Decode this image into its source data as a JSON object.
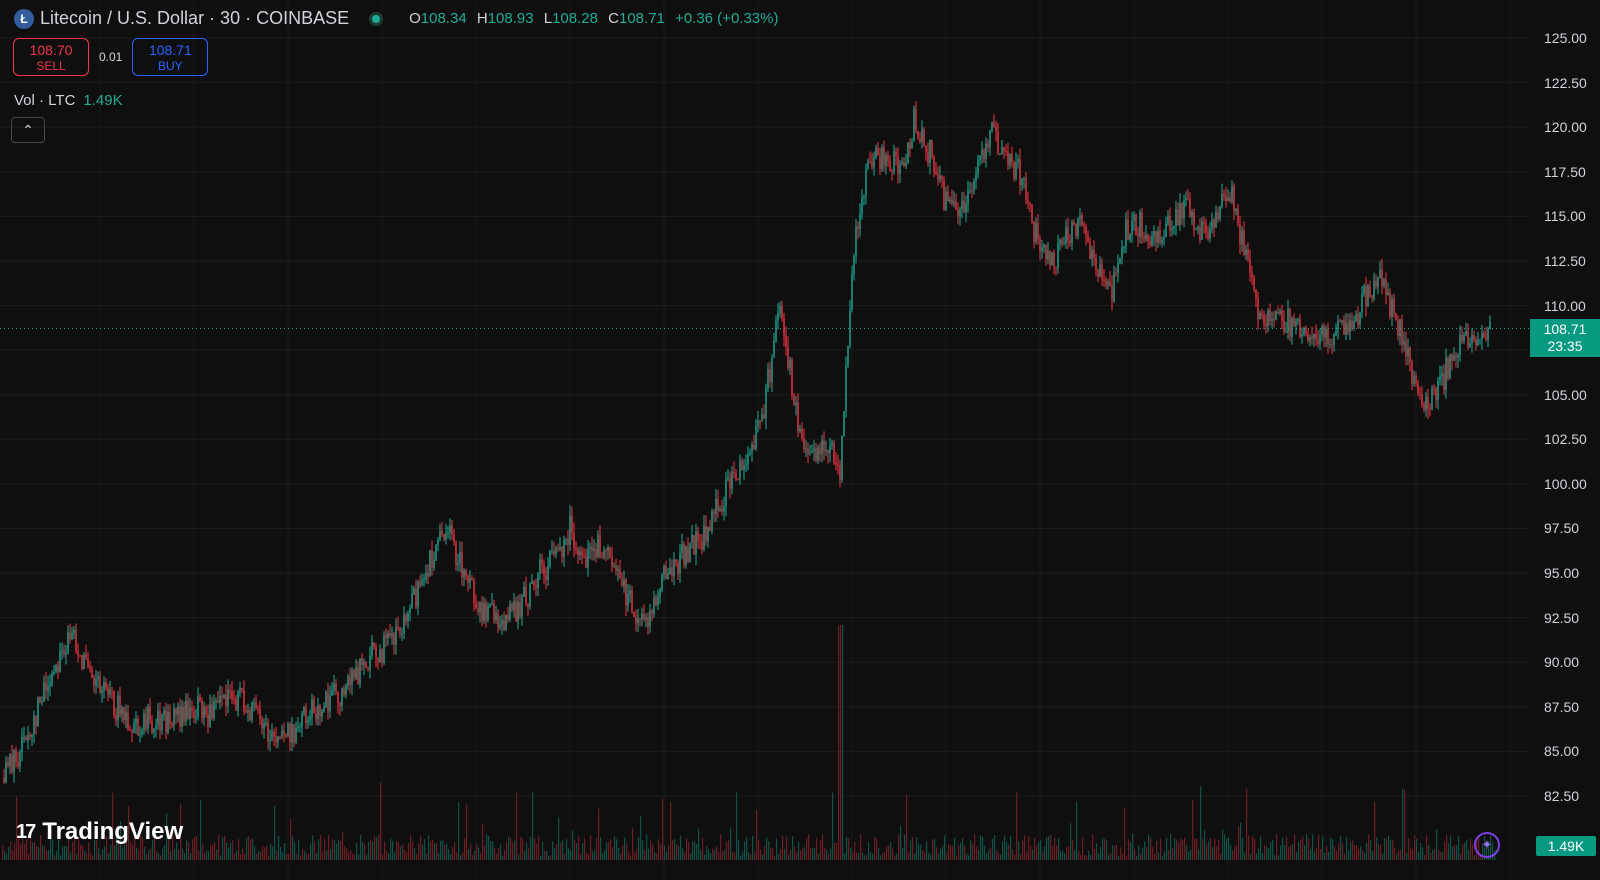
{
  "header": {
    "symbol_icon": "litecoin-icon",
    "title": "Litecoin / U.S. Dollar · 30 · COINBASE",
    "ohlc": {
      "o_label": "O",
      "o": "108.34",
      "h_label": "H",
      "h": "108.93",
      "l_label": "L",
      "l": "108.28",
      "c_label": "C",
      "c": "108.71",
      "change": "+0.36 (+0.33%)"
    }
  },
  "trade": {
    "sell_price": "108.70",
    "sell_label": "SELL",
    "spread": "0.01",
    "buy_price": "108.71",
    "buy_label": "BUY"
  },
  "volume": {
    "label": "Vol · LTC",
    "value": "1.49K"
  },
  "last_price": {
    "price": "108.71",
    "countdown": "23:35"
  },
  "vol_tag": "1.49K",
  "branding": "TradingView",
  "colors": {
    "up": "#22ab94",
    "down": "#f23645",
    "buy": "#2962ff",
    "bg": "#0f0f0f"
  },
  "chart_data": {
    "type": "candlestick",
    "y_ticks": [
      "125.00",
      "122.50",
      "120.00",
      "117.50",
      "115.00",
      "112.50",
      "110.00",
      "108.71",
      "105.00",
      "102.50",
      "100.00",
      "97.50",
      "95.00",
      "92.50",
      "90.00",
      "87.50",
      "85.00",
      "82.50"
    ],
    "ylim": [
      80.0,
      126.0
    ],
    "grid": true,
    "series": [
      {
        "name": "LTC price path (approx.)",
        "x": [
          0,
          15,
          30,
          45,
          60,
          75,
          90,
          105,
          120,
          135,
          150,
          165,
          180,
          195,
          210,
          225,
          240,
          255,
          270,
          285,
          300,
          315,
          330,
          345,
          360,
          375,
          390,
          405,
          420,
          435,
          450,
          465,
          480,
          495,
          510,
          525,
          540,
          555,
          570,
          585,
          600,
          615,
          630,
          645,
          660,
          675,
          690,
          705,
          720,
          735,
          750,
          765,
          780,
          795,
          810,
          825,
          840,
          855,
          870,
          885,
          900,
          915,
          930,
          945,
          960,
          975,
          990,
          1005,
          1020,
          1035,
          1050,
          1065,
          1080,
          1095,
          1110,
          1125,
          1140,
          1155,
          1170,
          1185,
          1200,
          1215,
          1230,
          1245,
          1260,
          1275,
          1290,
          1305,
          1320,
          1335,
          1350,
          1365,
          1380,
          1395,
          1410,
          1425,
          1440,
          1455,
          1470,
          1490
        ],
        "y": [
          83.5,
          84.5,
          86.2,
          88.5,
          90.5,
          91.5,
          89.0,
          88.2,
          87.2,
          86.5,
          86.8,
          86.7,
          86.9,
          87.4,
          87.0,
          87.8,
          88.0,
          87.2,
          86.0,
          85.8,
          86.5,
          87.5,
          88.0,
          88.5,
          89.5,
          90.5,
          91.0,
          92.0,
          94.5,
          96.5,
          97.0,
          95.0,
          93.0,
          92.5,
          92.5,
          93.5,
          95.0,
          96.0,
          97.5,
          96.0,
          96.5,
          95.0,
          93.5,
          92.0,
          94.5,
          95.5,
          96.5,
          97.0,
          99.0,
          100.5,
          102.0,
          104.5,
          110.5,
          104.0,
          101.0,
          102.5,
          101.0,
          114.0,
          118.0,
          118.5,
          117.5,
          120.5,
          118.5,
          116.0,
          115.5,
          117.0,
          120.0,
          118.0,
          117.5,
          114.0,
          112.0,
          113.5,
          115.0,
          112.5,
          110.5,
          114.0,
          114.5,
          113.5,
          115.0,
          115.5,
          114.0,
          115.0,
          116.5,
          113.0,
          109.5,
          109.5,
          109.0,
          108.5,
          108.0,
          108.5,
          108.5,
          110.5,
          111.5,
          109.5,
          106.5,
          104.5,
          105.5,
          107.5,
          108.0,
          108.7
        ]
      }
    ],
    "volume_bars": "many small green/red bars along the bottom"
  }
}
